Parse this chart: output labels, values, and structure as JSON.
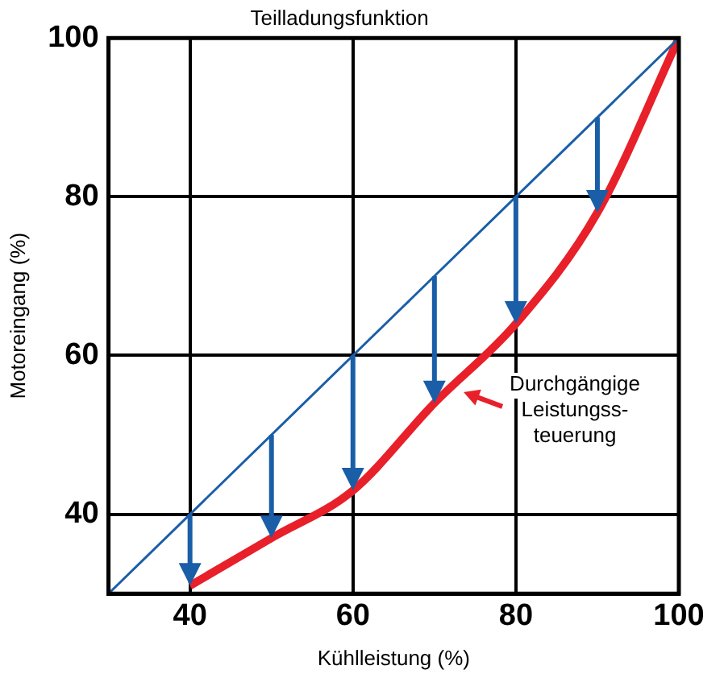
{
  "chart_data": {
    "type": "line",
    "title": "Teilladungsfunktion",
    "xlabel": "Kühlleistung (%)",
    "ylabel": "Motoreingang (%)",
    "xlim": [
      30,
      100
    ],
    "ylim": [
      30,
      100
    ],
    "xticks": [
      40,
      60,
      80,
      100
    ],
    "yticks": [
      40,
      60,
      80,
      100
    ],
    "grid": true,
    "legend": false,
    "marker": "none",
    "line_style": "solid",
    "series": [
      {
        "color": "#1a5ea8",
        "x": [
          30,
          100
        ],
        "values": [
          30,
          100
        ]
      },
      {
        "color": "#e8202a",
        "x": [
          40,
          50,
          60,
          70,
          80,
          90,
          100
        ],
        "values": [
          31,
          37,
          43,
          54,
          64,
          78,
          100
        ]
      }
    ],
    "annotations": [
      {
        "text": "Durchgängige\nLeistungss-\nteuerung",
        "x": 72,
        "y": 56
      }
    ]
  }
}
